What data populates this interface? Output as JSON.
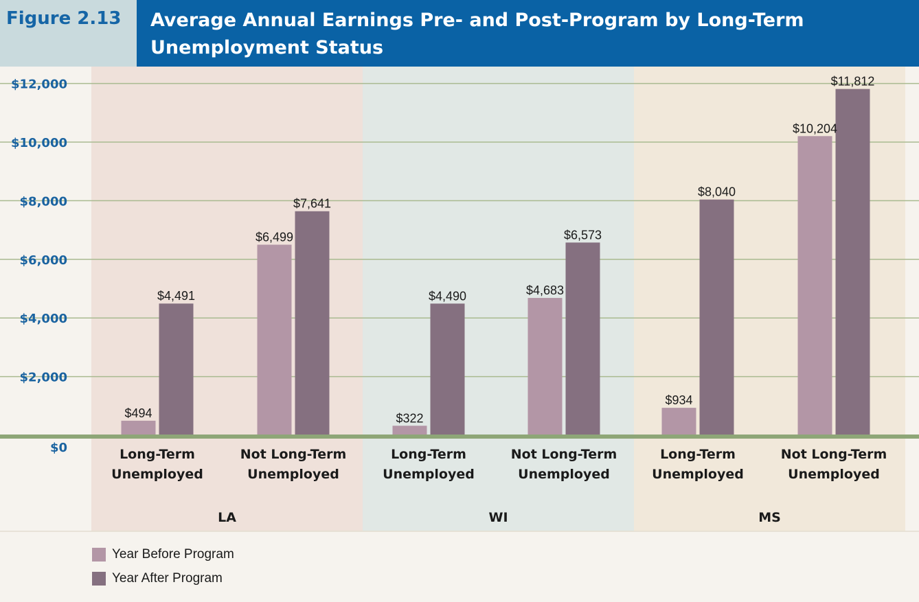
{
  "figure": {
    "label": "Figure 2.13",
    "title": "Average Annual Earnings Pre- and Post-Program by Long-Term Unemployment Status"
  },
  "colors": {
    "before": "#b396a6",
    "after": "#857080",
    "panel_la": "#efe1da",
    "panel_wi": "#e1e8e5",
    "panel_ms": "#f1e8da",
    "gridline": "#a9ba90",
    "baseline": "#8ea677",
    "axis_text": "#1a63a0",
    "header_bg": "#0a62a5",
    "label_bg": "#c9dadd"
  },
  "chart_data": {
    "type": "bar",
    "ylim": [
      0,
      12000
    ],
    "yticks": [
      0,
      2000,
      4000,
      6000,
      8000,
      10000,
      12000
    ],
    "ytick_labels": [
      "$0",
      "$2,000",
      "$4,000",
      "$6,000",
      "$8,000",
      "$10,000",
      "$12,000"
    ],
    "groups": [
      "LA",
      "WI",
      "MS"
    ],
    "categories": [
      {
        "group": "LA",
        "label_line1": "Long-Term",
        "label_line2": "Unemployed"
      },
      {
        "group": "LA",
        "label_line1": "Not Long-Term",
        "label_line2": "Unemployed"
      },
      {
        "group": "WI",
        "label_line1": "Long-Term",
        "label_line2": "Unemployed"
      },
      {
        "group": "WI",
        "label_line1": "Not Long-Term",
        "label_line2": "Unemployed"
      },
      {
        "group": "MS",
        "label_line1": "Long-Term",
        "label_line2": "Unemployed"
      },
      {
        "group": "MS",
        "label_line1": "Not Long-Term",
        "label_line2": "Unemployed"
      }
    ],
    "series": [
      {
        "name": "Year Before Program",
        "values": [
          494,
          6499,
          322,
          4683,
          934,
          10204
        ],
        "labels": [
          "$494",
          "$6,499",
          "$322",
          "$4,683",
          "$934",
          "$10,204"
        ]
      },
      {
        "name": "Year After Program",
        "values": [
          4491,
          7641,
          4490,
          6573,
          8040,
          11812
        ],
        "labels": [
          "$4,491",
          "$7,641",
          "$4,490",
          "$6,573",
          "$8,040",
          "$11,812"
        ]
      }
    ],
    "legend_position": "bottom-left",
    "grid": true
  }
}
